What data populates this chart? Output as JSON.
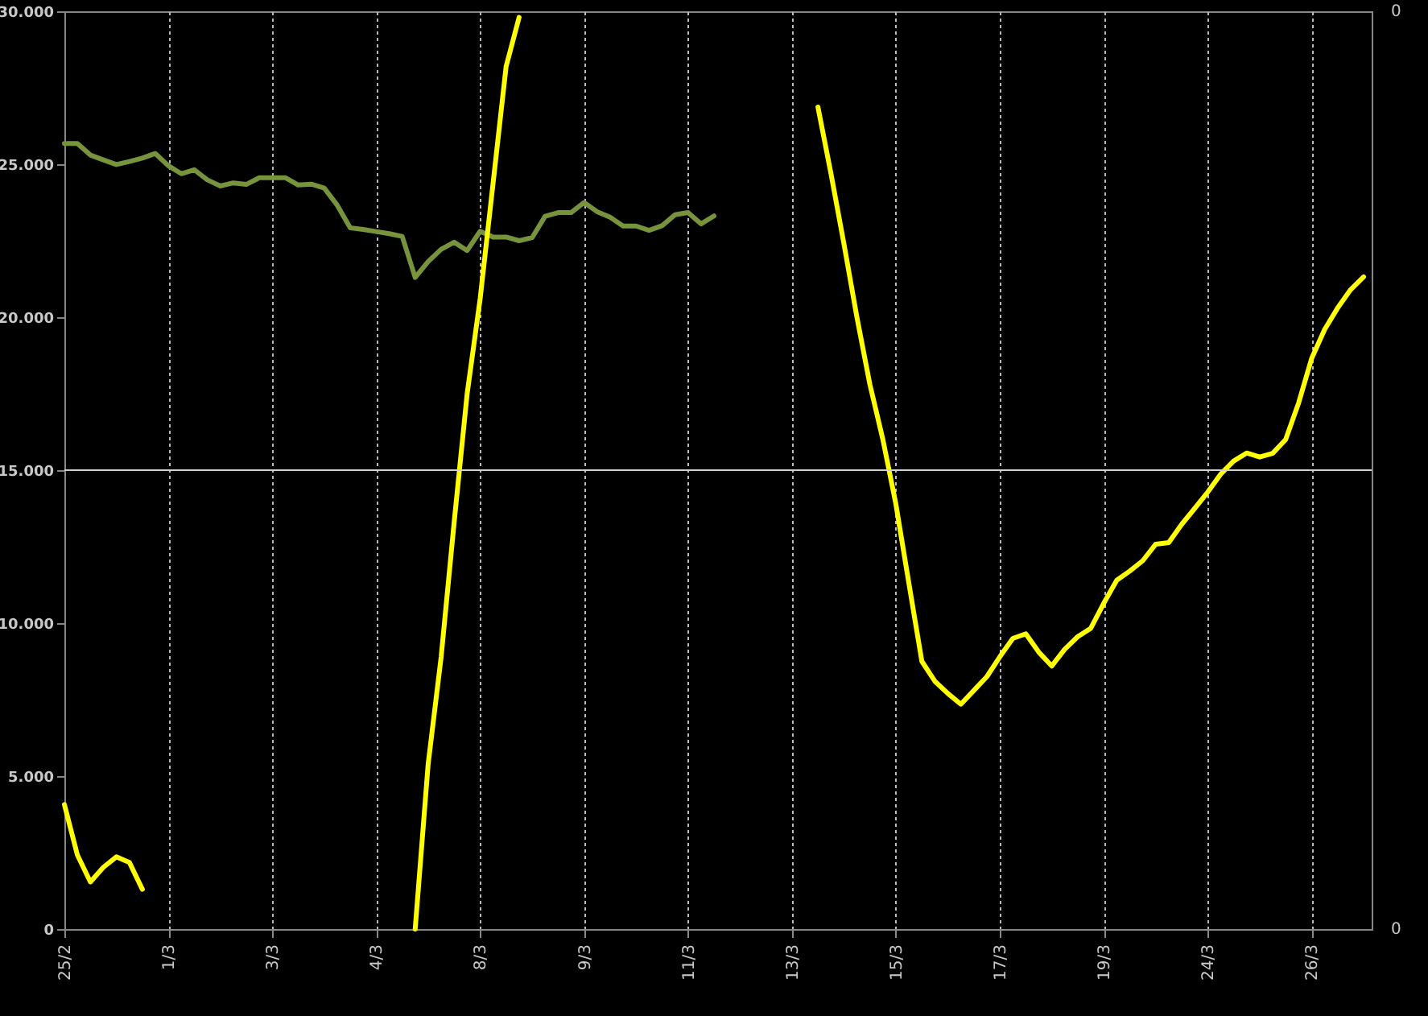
{
  "chart_data": {
    "type": "line",
    "categories": [
      "25/2",
      null,
      null,
      null,
      null,
      null,
      null,
      null,
      "1/3",
      null,
      null,
      null,
      null,
      null,
      null,
      null,
      "3/3",
      null,
      null,
      null,
      null,
      null,
      null,
      null,
      "4/3",
      null,
      null,
      null,
      null,
      null,
      null,
      null,
      "8/3",
      null,
      null,
      null,
      null,
      null,
      null,
      null,
      "9/3",
      null,
      null,
      null,
      null,
      null,
      null,
      null,
      "11/3",
      null,
      null,
      null,
      null,
      null,
      null,
      null,
      "13/3",
      null,
      null,
      null,
      null,
      null,
      null,
      null,
      "15/3",
      null,
      null,
      null,
      null,
      null,
      null,
      null,
      "17/3",
      null,
      null,
      null,
      null,
      null,
      null,
      null,
      "19/3",
      null,
      null,
      null,
      null,
      null,
      null,
      null,
      "24/3",
      null,
      null,
      null,
      null,
      null,
      null,
      null,
      "26/3",
      null,
      null,
      null,
      null
    ],
    "ylim": [
      0,
      30000
    ],
    "yticks": [
      0,
      {
        "value": 5000,
        "label": "5.000"
      },
      {
        "value": 10000,
        "label": "10.000"
      },
      {
        "value": 15000,
        "label": "15.000"
      },
      {
        "value": 20000,
        "label": "20.000"
      },
      {
        "value": 25000,
        "label": "25.000"
      },
      {
        "value": 30000,
        "label": "30.000"
      }
    ],
    "grid": "x",
    "line_style": "solid",
    "annotations": [
      "0",
      "0"
    ],
    "ref_lines": [
      {
        "axis": "y",
        "value": 15000,
        "color": "#d0d0d0"
      }
    ],
    "series": [
      {
        "color": "#77933c",
        "values": [
          25680,
          25680,
          25300,
          25140,
          24990,
          25090,
          25200,
          25350,
          24950,
          24690,
          24820,
          24490,
          24290,
          24390,
          24340,
          24560,
          24560,
          24560,
          24320,
          24350,
          24220,
          23660,
          22920,
          22870,
          22800,
          22730,
          22640,
          21300,
          21820,
          22220,
          22450,
          22180,
          22810,
          22620,
          22620,
          22500,
          22600,
          23300,
          23420,
          23420,
          23750,
          23450,
          23270,
          22980,
          22980,
          22840,
          22990,
          23350,
          23420,
          23050,
          23310,
          null,
          null,
          null,
          null,
          null,
          null,
          null,
          null,
          null,
          null,
          null,
          null,
          null,
          null,
          null,
          null,
          null,
          null,
          null,
          null,
          null,
          null,
          null,
          null,
          null,
          null,
          null,
          null,
          null,
          null,
          null,
          null,
          null,
          null,
          null,
          null,
          null,
          null,
          null,
          null,
          null,
          null,
          null,
          null,
          null,
          null,
          null,
          null,
          null,
          null
        ]
      },
      {
        "color": "#ffff00",
        "values": [
          4070,
          2420,
          1540,
          2020,
          2360,
          2180,
          1300,
          null,
          null,
          null,
          null,
          null,
          null,
          null,
          null,
          null,
          null,
          null,
          null,
          null,
          null,
          null,
          null,
          null,
          null,
          null,
          null,
          0,
          5400,
          8900,
          13300,
          17500,
          20600,
          24400,
          28200,
          29800,
          null,
          null,
          null,
          null,
          null,
          null,
          null,
          null,
          null,
          null,
          null,
          null,
          null,
          null,
          null,
          null,
          null,
          null,
          null,
          null,
          null,
          null,
          26870,
          24700,
          22400,
          20000,
          17800,
          16000,
          13890,
          11300,
          8750,
          8100,
          7700,
          7350,
          7800,
          8250,
          8900,
          9500,
          9650,
          9050,
          8600,
          9150,
          9560,
          9830,
          10650,
          11400,
          11700,
          12040,
          12580,
          12630,
          13230,
          13750,
          14280,
          14870,
          15300,
          15560,
          15430,
          15550,
          16000,
          17200,
          18650,
          19600,
          20300,
          20900,
          21320
        ]
      }
    ]
  }
}
